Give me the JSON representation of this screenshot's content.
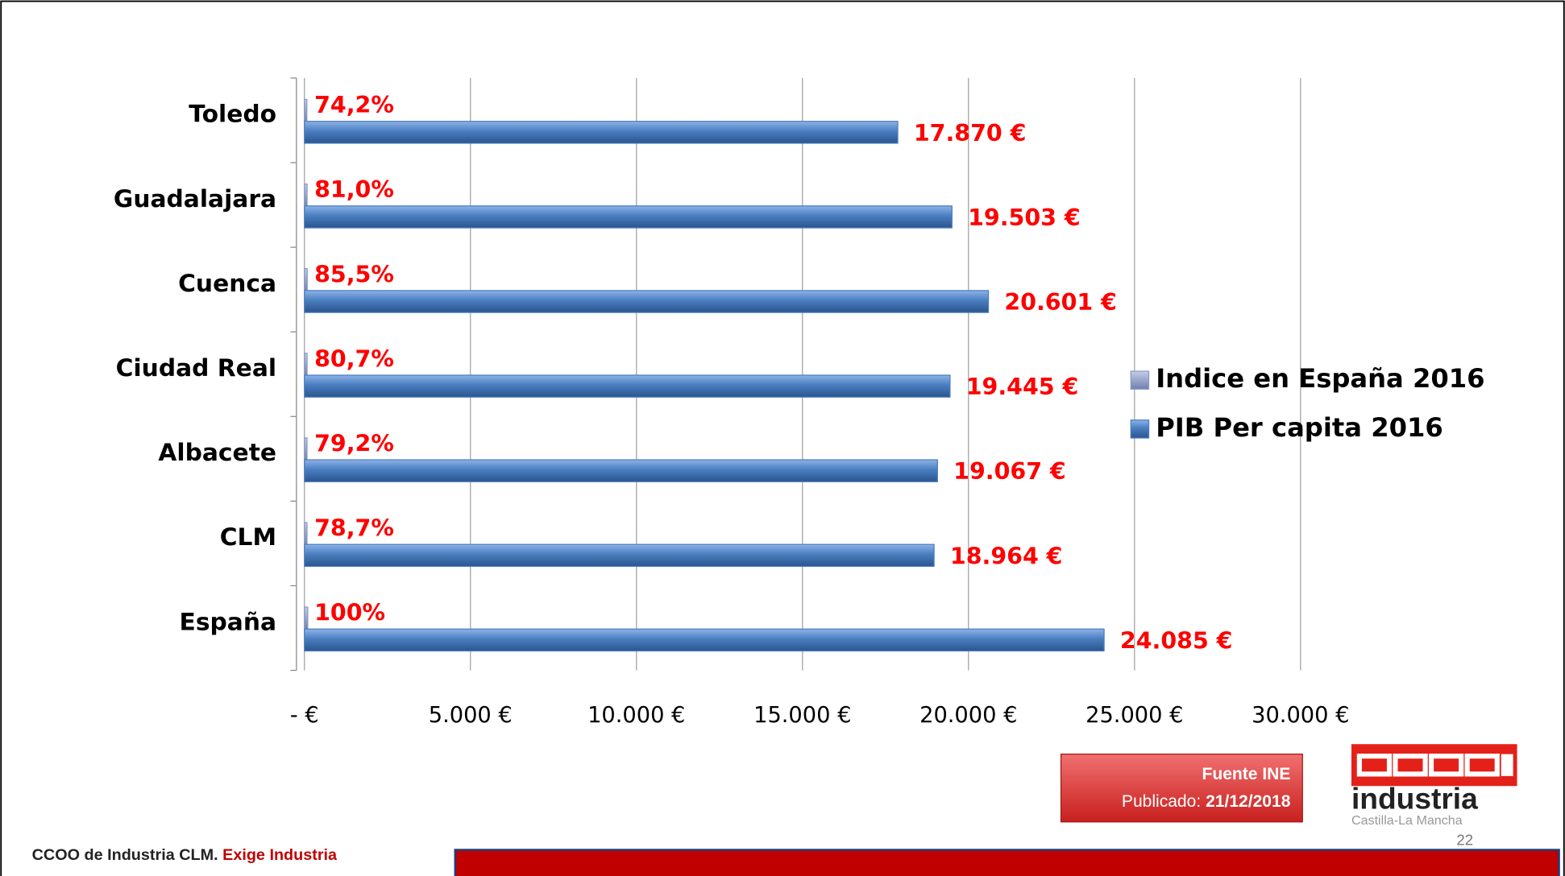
{
  "chart_data": {
    "type": "bar",
    "orientation": "horizontal",
    "categories": [
      "Toledo",
      "Guadalajara",
      "Cuenca",
      "Ciudad Real",
      "Albacete",
      "CLM",
      "España"
    ],
    "series": [
      {
        "name": "Indice en España 2016",
        "color": "#8b9bc8",
        "values": [
          74.2,
          81.0,
          85.5,
          80.7,
          79.2,
          78.7,
          100
        ],
        "value_labels": [
          "74,2%",
          "81,0%",
          "85,5%",
          "80,7%",
          "79,2%",
          "78,7%",
          "100%"
        ]
      },
      {
        "name": "PIB Per capita 2016",
        "color": "#4a7ec0",
        "values": [
          17870,
          19503,
          20601,
          19445,
          19067,
          18964,
          24085
        ],
        "value_labels": [
          "17.870 €",
          "19.503 €",
          "20.601 €",
          "19.445 €",
          "19.067 €",
          "18.964 €",
          "24.085 €"
        ]
      }
    ],
    "xlim": [
      0,
      30000
    ],
    "xticks": [
      {
        "value": 0,
        "label": "- €"
      },
      {
        "value": 5000,
        "label": "5.000 €"
      },
      {
        "value": 10000,
        "label": "10.000 €"
      },
      {
        "value": 15000,
        "label": "15.000 €"
      },
      {
        "value": 20000,
        "label": "20.000 €"
      },
      {
        "value": 25000,
        "label": "25.000 €"
      },
      {
        "value": 30000,
        "label": "30.000 €"
      }
    ],
    "grid": true,
    "legend": "right"
  },
  "source": {
    "title": "Fuente INE",
    "published_label": "Publicado:",
    "published_date": "21/12/2018"
  },
  "logo": {
    "name": "industria",
    "region": "Castilla-La Mancha"
  },
  "page_number": "22",
  "footer": {
    "org": "CCOO de Industria CLM.",
    "slogan": "Exige Industria"
  }
}
